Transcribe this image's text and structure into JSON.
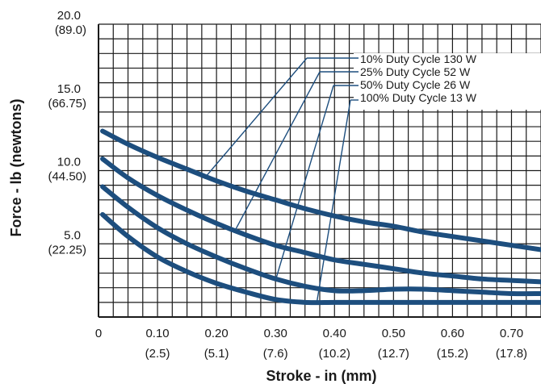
{
  "chart_data": {
    "type": "line",
    "title": "",
    "xlabel": "Stroke - in (mm)",
    "ylabel": "Force - lb (newtons)",
    "xlim": [
      0,
      0.75
    ],
    "ylim": [
      0,
      20
    ],
    "grid": true,
    "x_ticks": [
      {
        "value": 0,
        "label": "0",
        "sub": ""
      },
      {
        "value": 0.1,
        "label": "0.10",
        "sub": "(2.5)"
      },
      {
        "value": 0.2,
        "label": "0.20",
        "sub": "(5.1)"
      },
      {
        "value": 0.3,
        "label": "0.30",
        "sub": "(7.6)"
      },
      {
        "value": 0.4,
        "label": "0.40",
        "sub": "(10.2)"
      },
      {
        "value": 0.5,
        "label": "0.50",
        "sub": "(12.7)"
      },
      {
        "value": 0.6,
        "label": "0.60",
        "sub": "(15.2)"
      },
      {
        "value": 0.7,
        "label": "0.70",
        "sub": "(17.8)"
      }
    ],
    "y_ticks": [
      {
        "value": 20,
        "label": "20.0",
        "sub": "(89.0)"
      },
      {
        "value": 15,
        "label": "15.0",
        "sub": "(66.75)"
      },
      {
        "value": 10,
        "label": "10.0",
        "sub": "(44.50)"
      },
      {
        "value": 5,
        "label": "5.0",
        "sub": "(22.25)"
      }
    ],
    "series_color": "#1d4e7e",
    "series": [
      {
        "name": "10% Duty Cycle 130 W",
        "x": [
          0,
          0.05,
          0.1,
          0.15,
          0.2,
          0.25,
          0.3,
          0.35,
          0.4,
          0.45,
          0.5,
          0.55,
          0.6,
          0.65,
          0.7,
          0.75
        ],
        "y": [
          12.7,
          11.8,
          10.9,
          10.1,
          9.3,
          8.6,
          8.0,
          7.4,
          6.9,
          6.5,
          6.2,
          5.8,
          5.5,
          5.2,
          4.9,
          4.6
        ],
        "pointer": {
          "x": 0.18,
          "y": 9.5
        }
      },
      {
        "name": "25% Duty Cycle 52 W",
        "x": [
          0,
          0.05,
          0.1,
          0.15,
          0.2,
          0.25,
          0.3,
          0.35,
          0.4,
          0.45,
          0.5,
          0.55,
          0.6,
          0.65,
          0.7,
          0.75
        ],
        "y": [
          10.8,
          9.5,
          8.3,
          7.3,
          6.4,
          5.6,
          4.9,
          4.4,
          3.9,
          3.6,
          3.3,
          3.0,
          2.8,
          2.6,
          2.5,
          2.4
        ],
        "pointer": {
          "x": 0.23,
          "y": 5.8
        }
      },
      {
        "name": "50% Duty Cycle 26 W",
        "x": [
          0,
          0.05,
          0.1,
          0.15,
          0.2,
          0.25,
          0.3,
          0.35,
          0.4,
          0.45,
          0.5,
          0.55,
          0.6,
          0.65,
          0.7,
          0.75
        ],
        "y": [
          8.9,
          7.5,
          6.1,
          5.0,
          4.1,
          3.3,
          2.6,
          2.1,
          1.8,
          1.8,
          1.9,
          1.9,
          1.8,
          1.7,
          1.6,
          1.6
        ],
        "pointer": {
          "x": 0.3,
          "y": 2.5
        }
      },
      {
        "name": "100% Duty Cycle 13 W",
        "x": [
          0,
          0.05,
          0.1,
          0.15,
          0.2,
          0.25,
          0.3,
          0.35,
          0.4,
          0.45,
          0.5,
          0.55,
          0.6,
          0.65,
          0.7,
          0.75
        ],
        "y": [
          7.0,
          5.5,
          4.1,
          3.1,
          2.3,
          1.7,
          1.2,
          1.0,
          1.0,
          1.0,
          1.0,
          1.0,
          1.0,
          1.0,
          1.0,
          1.0
        ],
        "pointer": {
          "x": 0.37,
          "y": 1.0
        }
      }
    ]
  }
}
